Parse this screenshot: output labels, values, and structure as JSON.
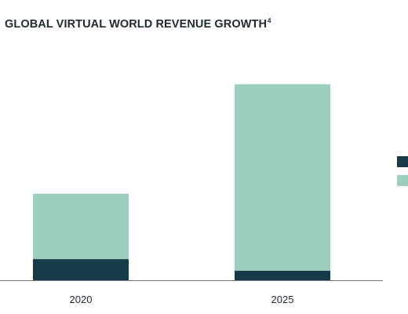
{
  "chart_data": {
    "type": "bar",
    "stacked": true,
    "title": "GLOBAL VIRTUAL WORLD REVENUE GROWTH",
    "title_superscript": "4",
    "categories": [
      "2020",
      "2025"
    ],
    "series": [
      {
        "values": [
          11,
          5
        ],
        "color": "#153a4a"
      },
      {
        "values": [
          34,
          97
        ],
        "color": "#9ccdbd"
      }
    ],
    "ylim": [
      0,
      105
    ],
    "grid": false,
    "legend": {
      "position": "right"
    }
  }
}
